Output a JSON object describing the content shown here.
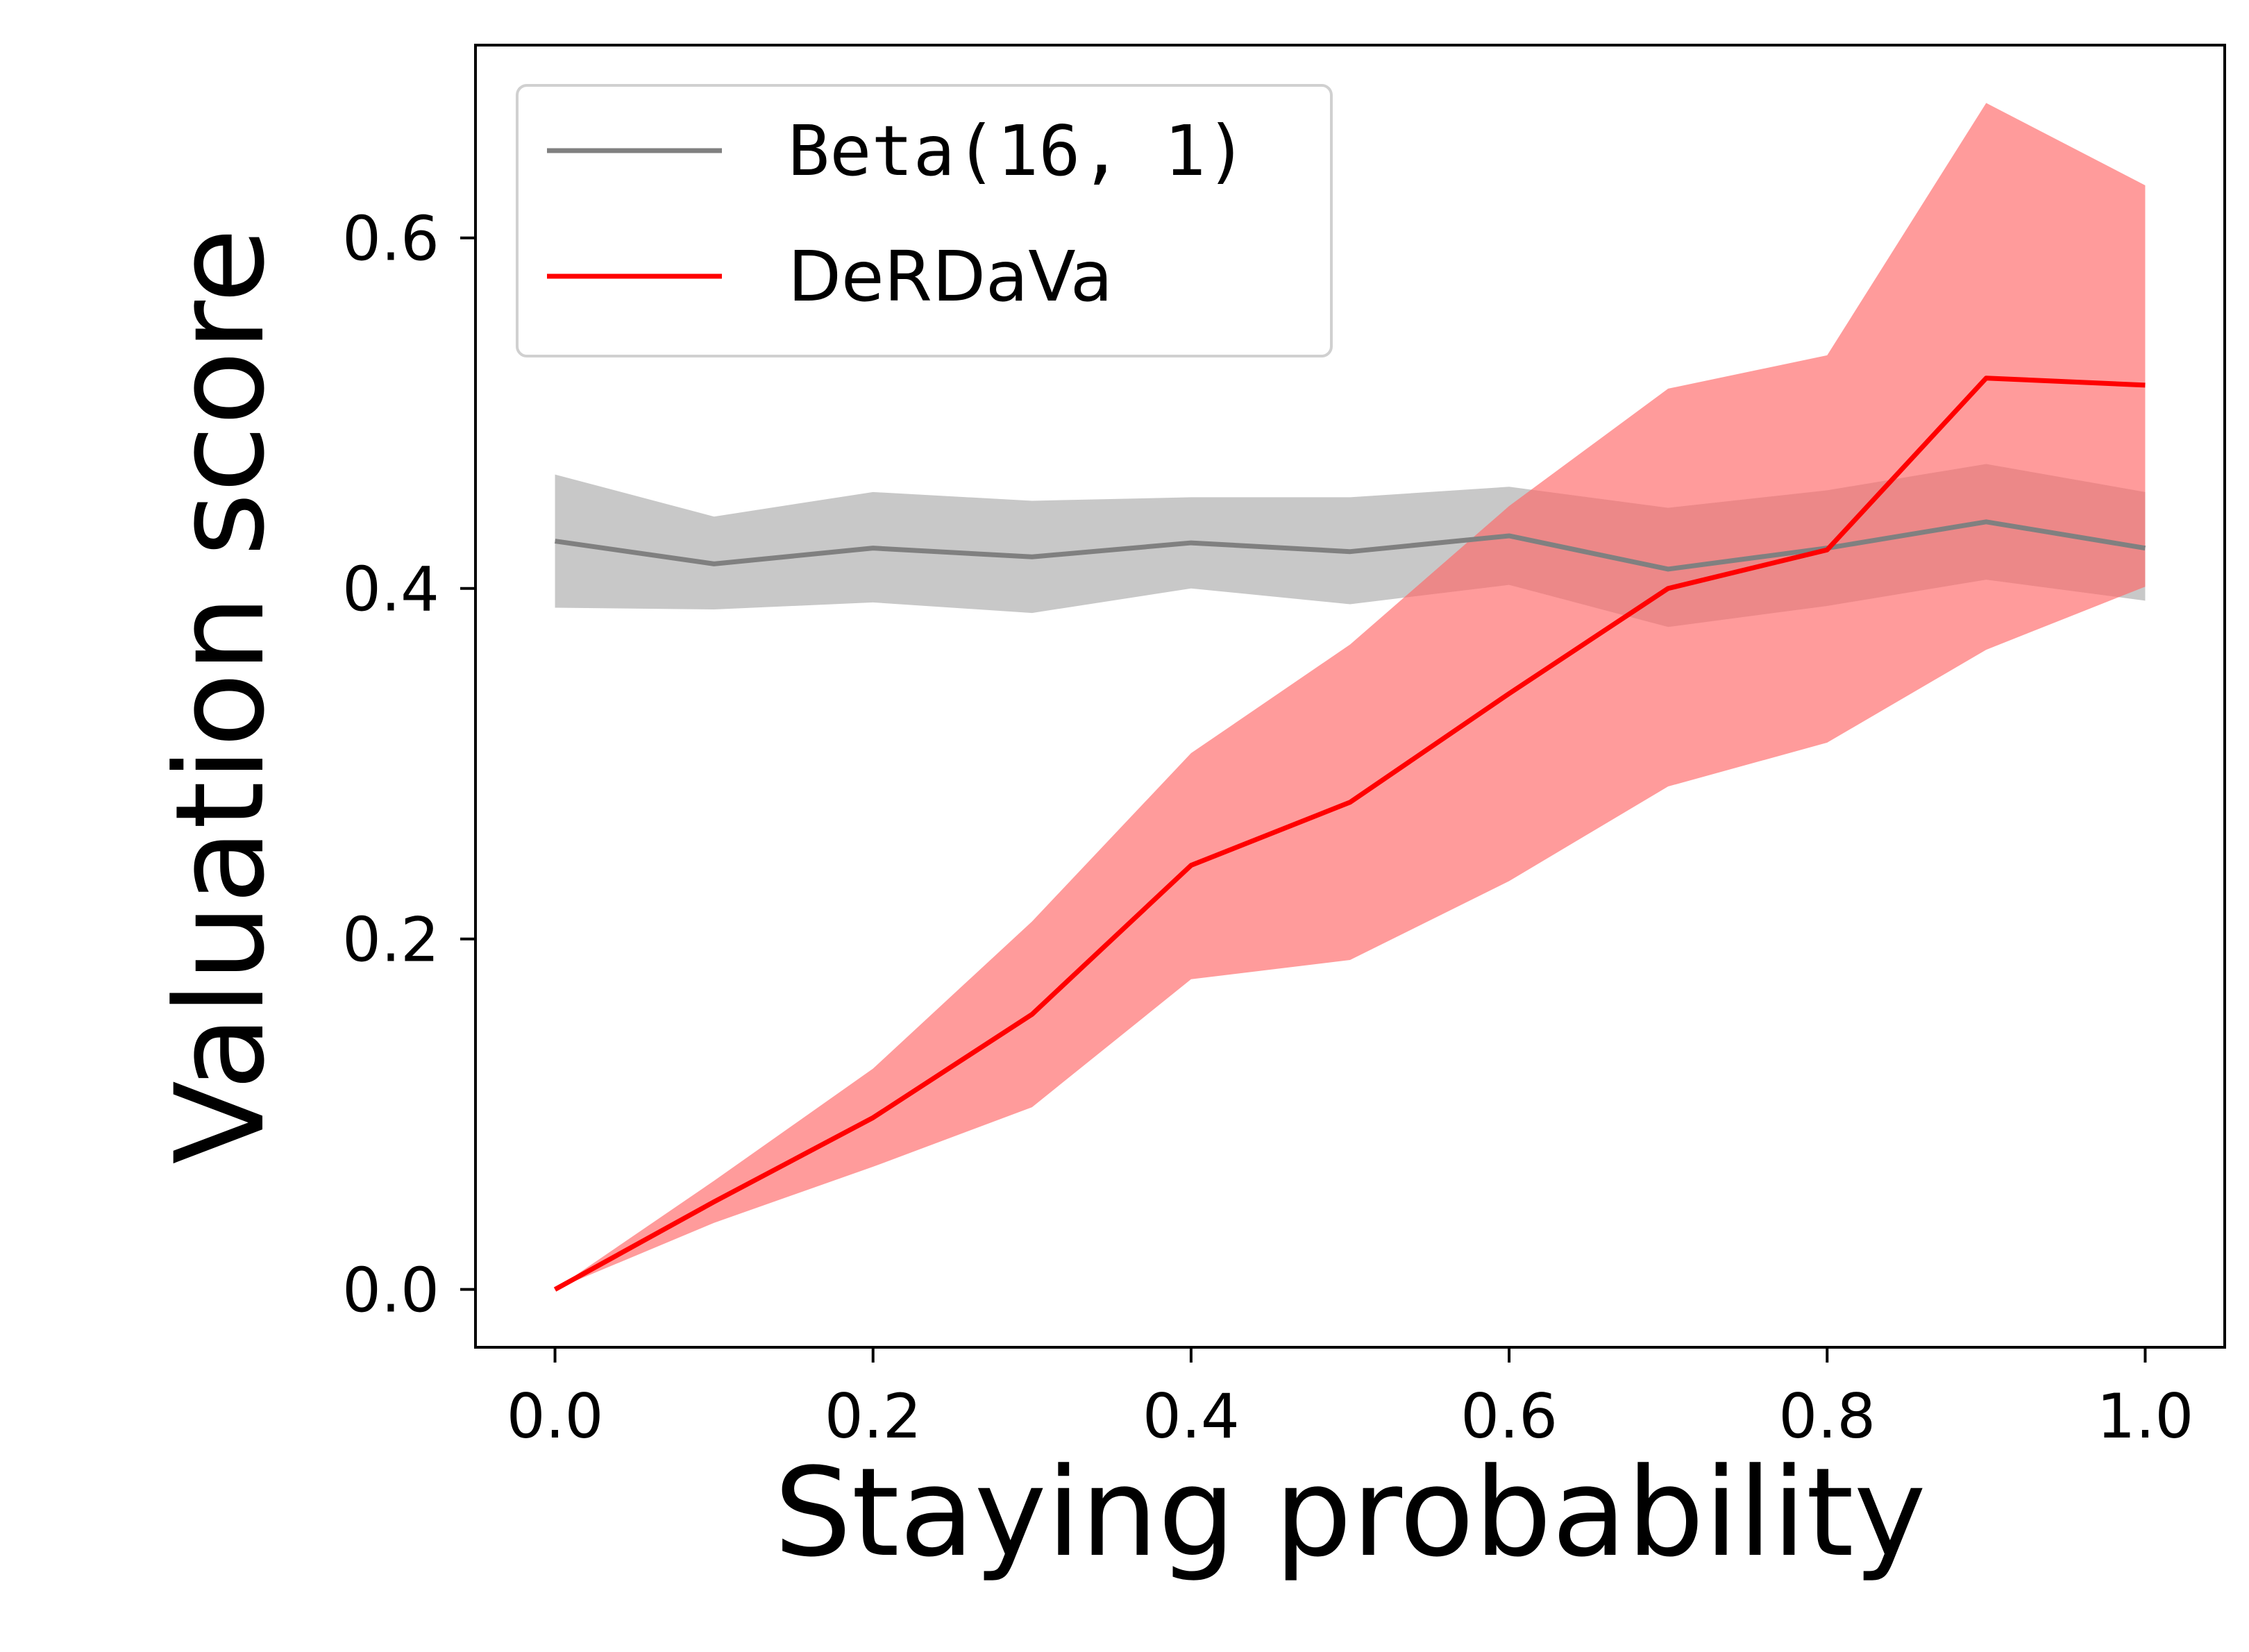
{
  "chart_data": {
    "type": "line",
    "title": "",
    "xlabel": "Staying probability",
    "ylabel": "Valuation score",
    "xlim": [
      -0.05,
      1.05
    ],
    "ylim": [
      -0.033,
      0.71
    ],
    "xticks": [
      0.0,
      0.2,
      0.4,
      0.6,
      0.8,
      1.0
    ],
    "xtick_labels": [
      "0.0",
      "0.2",
      "0.4",
      "0.6",
      "0.8",
      "1.0"
    ],
    "yticks": [
      0.0,
      0.2,
      0.4,
      0.6
    ],
    "ytick_labels": [
      "0.0",
      "0.2",
      "0.4",
      "0.6"
    ],
    "grid": false,
    "legend_position": "top-left",
    "x": [
      0.0,
      0.1,
      0.2,
      0.3,
      0.4,
      0.5,
      0.6,
      0.7,
      0.8,
      0.9,
      1.0
    ],
    "series": [
      {
        "name": "Beta(16, 1)",
        "color": "#808080",
        "band_color": "#c8c8c8",
        "mono_label": true,
        "values": [
          0.427,
          0.414,
          0.423,
          0.418,
          0.426,
          0.421,
          0.43,
          0.411,
          0.423,
          0.438,
          0.423
        ],
        "lower": [
          0.389,
          0.388,
          0.392,
          0.386,
          0.4,
          0.391,
          0.402,
          0.378,
          0.39,
          0.405,
          0.393
        ],
        "upper": [
          0.465,
          0.441,
          0.455,
          0.45,
          0.452,
          0.452,
          0.458,
          0.446,
          0.456,
          0.471,
          0.455
        ]
      },
      {
        "name": "DeRDaVa",
        "color": "#ff0000",
        "band_color": "#ff6666",
        "mono_label": false,
        "values": [
          0.0,
          0.05,
          0.098,
          0.157,
          0.242,
          0.278,
          0.34,
          0.4,
          0.422,
          0.52,
          0.516
        ],
        "lower": [
          0.0,
          0.038,
          0.07,
          0.104,
          0.177,
          0.188,
          0.233,
          0.287,
          0.312,
          0.365,
          0.401
        ],
        "upper": [
          0.0,
          0.062,
          0.126,
          0.21,
          0.306,
          0.368,
          0.447,
          0.514,
          0.533,
          0.677,
          0.63
        ]
      }
    ]
  }
}
